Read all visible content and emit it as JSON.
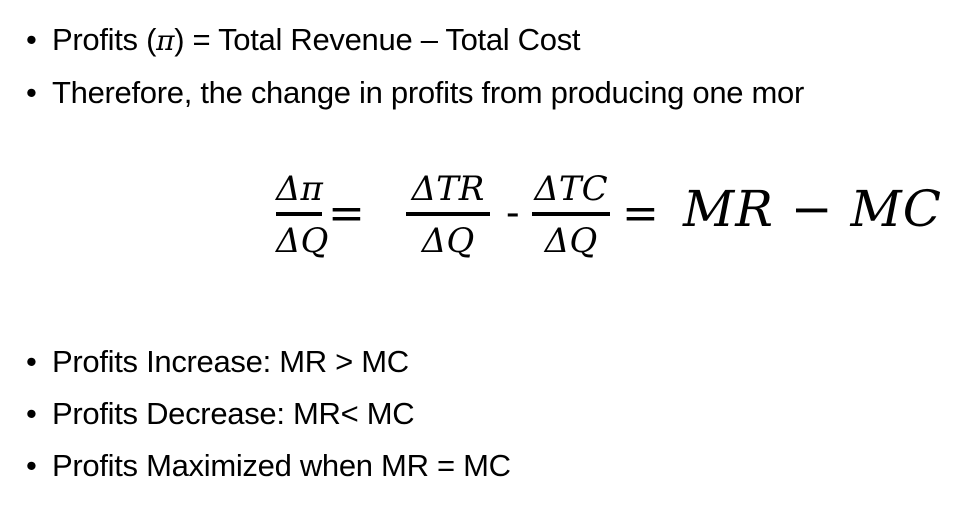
{
  "bullets_top": [
    {
      "pre": "Profits (",
      "sym": "π",
      "post": ") = Total Revenue – Total Cost"
    },
    {
      "text": "Therefore, the change in profits from producing one mor"
    }
  ],
  "equation": {
    "f1": {
      "num": "Δπ",
      "den": "ΔQ"
    },
    "eq1": "=",
    "f2": {
      "num": "ΔTR",
      "den": "ΔQ"
    },
    "minus": "-",
    "f3": {
      "num": "ΔTC",
      "den": "ΔQ"
    },
    "eq2": "=",
    "rhs": "MR − MC"
  },
  "bullets_bottom": [
    "Profits Increase: MR > MC",
    "Profits Decrease: MR< MC",
    "Profits Maximized when MR = MC"
  ],
  "bullet_char": "•"
}
